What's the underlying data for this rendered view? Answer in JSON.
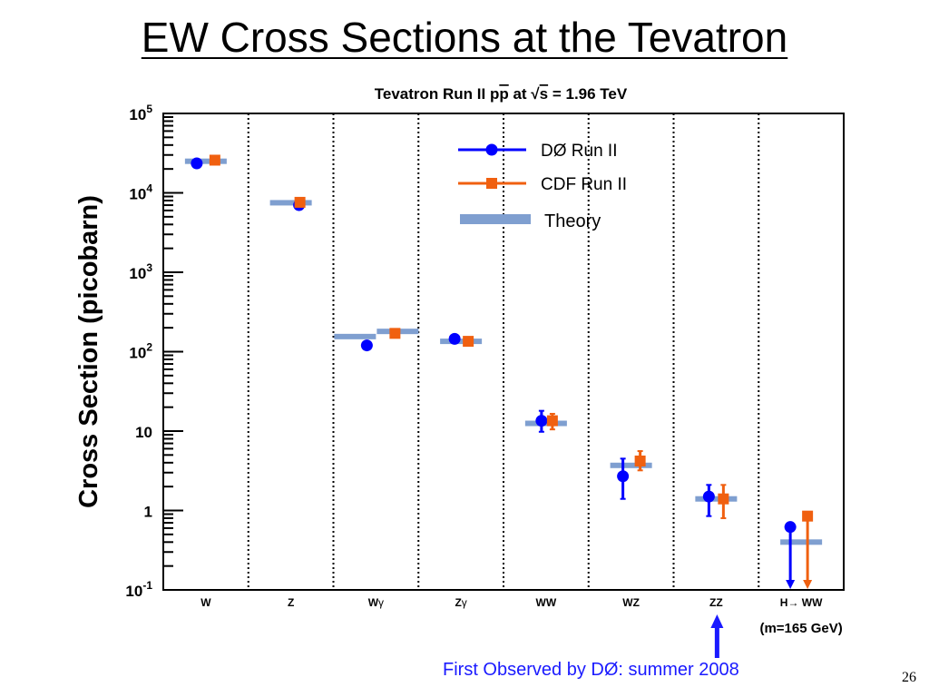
{
  "slide": {
    "title": "EW Cross Sections at the Tevatron",
    "annotation": "First Observed by DØ: summer 2008",
    "page_number": "26"
  },
  "chart_data": {
    "type": "scatter",
    "title_prefix": "Tevatron Run II p",
    "title_pbar": "p",
    "title_mid": " at ",
    "title_sqrt": "√",
    "title_s": "s",
    "title_suffix": " = 1.96 TeV",
    "ylabel": "Cross Section (picobarn)",
    "yscale": "log",
    "ylim": [
      0.1,
      100000
    ],
    "y_tick_labels": [
      {
        "value": 0.1,
        "base": "10",
        "exp": "-1"
      },
      {
        "value": 1,
        "base": "1",
        "exp": ""
      },
      {
        "value": 10,
        "base": "10",
        "exp": ""
      },
      {
        "value": 100,
        "base": "10",
        "exp": "2"
      },
      {
        "value": 1000,
        "base": "10",
        "exp": "3"
      },
      {
        "value": 10000,
        "base": "10",
        "exp": "4"
      },
      {
        "value": 100000,
        "base": "10",
        "exp": "5"
      }
    ],
    "categories": [
      {
        "label": "W"
      },
      {
        "label": "Z"
      },
      {
        "label": "W",
        "sub": "γ"
      },
      {
        "label": "Z",
        "sub": "γ"
      },
      {
        "label": "WW"
      },
      {
        "label": "WZ"
      },
      {
        "label": "ZZ"
      },
      {
        "label": "H→ WW",
        "note": "(m=165 GeV)"
      }
    ],
    "series": [
      {
        "name": "DØ Run II",
        "color": "#0000ff",
        "marker": "circle",
        "values": [
          23500,
          7000,
          120,
          145,
          13.5,
          2.7,
          1.5,
          0.62
        ],
        "err_lo": [
          null,
          null,
          null,
          null,
          9.8,
          1.4,
          0.85,
          null
        ],
        "err_hi": [
          null,
          null,
          null,
          null,
          18,
          4.5,
          2.1,
          null
        ],
        "upper_limit": [
          false,
          false,
          false,
          false,
          false,
          false,
          false,
          true
        ]
      },
      {
        "name": "CDF Run II",
        "color": "#f06010",
        "marker": "square",
        "values": [
          25800,
          7600,
          170,
          135,
          13.5,
          4.2,
          1.4,
          0.85
        ],
        "err_lo": [
          null,
          null,
          null,
          null,
          10.5,
          3.2,
          0.8,
          null
        ],
        "err_hi": [
          null,
          null,
          null,
          null,
          16.5,
          5.6,
          2.1,
          null
        ],
        "upper_limit": [
          false,
          false,
          false,
          false,
          false,
          false,
          false,
          true
        ]
      }
    ],
    "theory": {
      "name": "Theory",
      "color": "#7f9fd0",
      "values": [
        25000,
        7500,
        155,
        135,
        12.5,
        3.7,
        1.4,
        0.4
      ],
      "values_cdf": [
        null,
        null,
        180,
        null,
        null,
        null,
        null,
        null
      ]
    },
    "legend_position": "top-right",
    "grid": false
  }
}
